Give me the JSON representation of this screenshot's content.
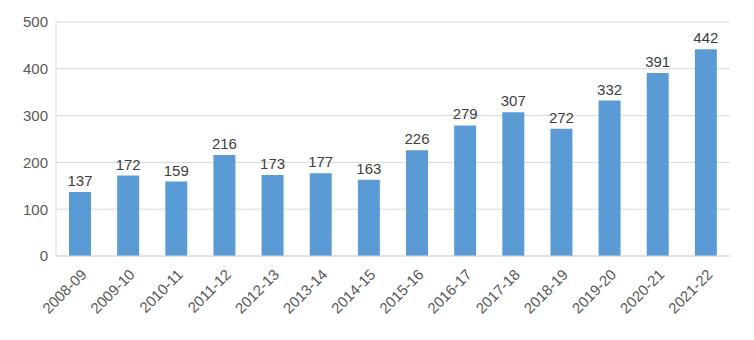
{
  "chart_data": {
    "type": "bar",
    "categories": [
      "2008-09",
      "2009-10",
      "2010-11",
      "2011-12",
      "2012-13",
      "2013-14",
      "2014-15",
      "2015-16",
      "2016-17",
      "2017-18",
      "2018-19",
      "2019-20",
      "2020-21",
      "2021-22"
    ],
    "values": [
      137,
      172,
      159,
      216,
      173,
      177,
      163,
      226,
      279,
      307,
      272,
      332,
      391,
      442
    ],
    "color": "#5b9bd5",
    "ylim": [
      0,
      500
    ],
    "yticks": [
      0,
      100,
      200,
      300,
      400,
      500
    ],
    "grid": true,
    "data_labels": true
  }
}
